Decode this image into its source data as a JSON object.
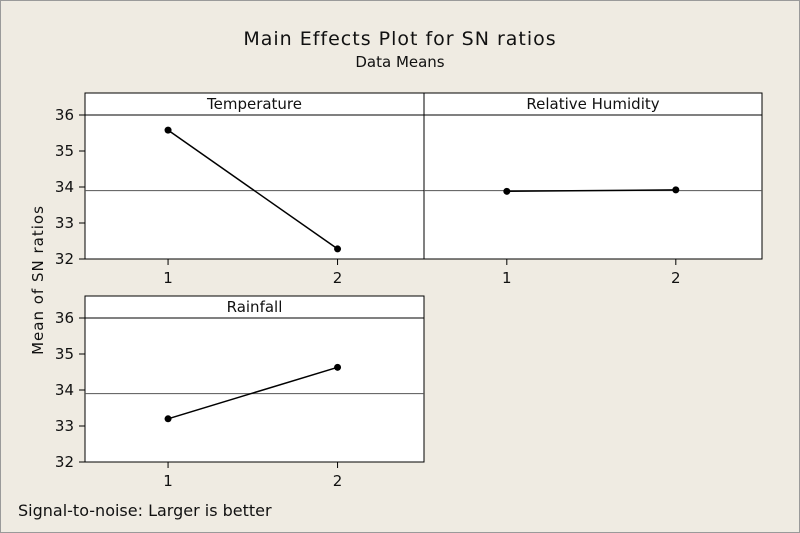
{
  "header": {
    "title": "Main Effects Plot for SN ratios",
    "subtitle": "Data Means"
  },
  "axis": {
    "ylabel": "Mean of SN ratios"
  },
  "footnote": "Signal-to-noise: Larger is better",
  "colors": {
    "background": "#efebe2",
    "panel": "#ffffff",
    "line": "#000000",
    "reference_line": "#555555"
  },
  "chart_data": {
    "type": "line",
    "title": "Main Effects Plot for SN ratios",
    "subtitle": "Data Means",
    "ylabel": "Mean of SN ratios",
    "ylim": [
      32,
      36
    ],
    "yticks": [
      32,
      33,
      34,
      35,
      36
    ],
    "grand_mean": 33.9,
    "panels": [
      {
        "name": "Temperature",
        "levels": [
          "1",
          "2"
        ],
        "values": [
          35.58,
          32.28
        ]
      },
      {
        "name": "Relative Humidity",
        "levels": [
          "1",
          "2"
        ],
        "values": [
          33.88,
          33.92
        ]
      },
      {
        "name": "Rainfall",
        "levels": [
          "1",
          "2"
        ],
        "values": [
          33.2,
          34.63
        ]
      }
    ]
  }
}
